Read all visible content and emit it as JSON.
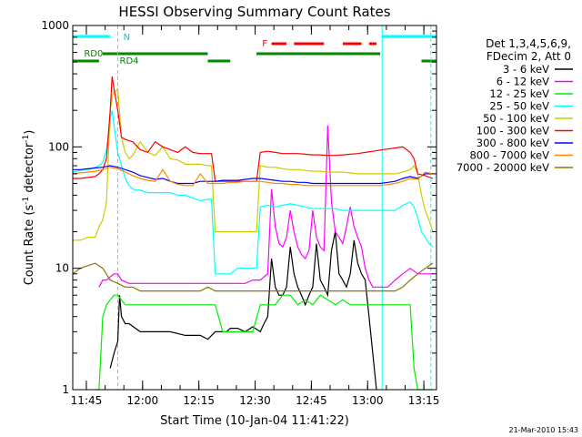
{
  "chart_data": {
    "type": "line",
    "title": "HESSI Observing Summary Count Rates",
    "xlabel": "Start Time (10-Jan-04 11:41:22)",
    "ylabel_main": "Count Rate (s",
    "ylabel_sup1": "-1",
    "ylabel_mid": " detector",
    "ylabel_sup2": "-1",
    "ylabel_end": ")",
    "y_scale": "log",
    "ylim": [
      1,
      1000
    ],
    "xlim_minutes": [
      0,
      97
    ],
    "x_ticks": [
      {
        "min": 3.63,
        "label": "11:45"
      },
      {
        "min": 18.63,
        "label": "12:00"
      },
      {
        "min": 33.63,
        "label": "12:15"
      },
      {
        "min": 48.63,
        "label": "12:30"
      },
      {
        "min": 63.63,
        "label": "12:45"
      },
      {
        "min": 78.63,
        "label": "13:00"
      },
      {
        "min": 93.63,
        "label": "13:15"
      }
    ],
    "y_ticks": [
      {
        "value": 1,
        "label": "1"
      },
      {
        "value": 10,
        "label": "10"
      },
      {
        "value": 100,
        "label": "100"
      },
      {
        "value": 1000,
        "label": "1000"
      }
    ],
    "legend_header": [
      "Det 1,3,4,5,6,9,",
      "FDecim 2, Att 0"
    ],
    "legend_position": "right",
    "timestamp": "21-Mar-2010 15:43",
    "flags": {
      "n_label": "N",
      "rd0_label": "RD0",
      "rd4_label": "RD4",
      "f_label": "F"
    },
    "series": [
      {
        "name": "3 - 6 keV",
        "color": "#000000",
        "x": [
          10,
          11,
          12,
          12.5,
          13,
          14,
          15,
          18,
          22,
          26,
          30,
          34,
          36,
          38,
          40,
          41,
          42,
          44,
          46,
          48,
          50,
          51,
          52,
          53,
          54,
          55,
          56,
          57,
          58,
          59,
          60,
          61,
          62,
          63,
          64,
          65,
          66,
          67,
          68,
          69,
          70,
          71,
          72,
          73,
          74,
          75,
          76,
          77,
          78,
          79,
          80,
          81
        ],
        "y": [
          1.5,
          2,
          2.5,
          6,
          4,
          3.5,
          3.5,
          3,
          3,
          3,
          2.8,
          2.8,
          2.6,
          3,
          3,
          3,
          3.2,
          3.2,
          3,
          3.3,
          3,
          3.5,
          4,
          12,
          7,
          6,
          6,
          7,
          15,
          9,
          7,
          6,
          5,
          6,
          7,
          16,
          8,
          7,
          6,
          14,
          20,
          9,
          8,
          7,
          9,
          17,
          11,
          9,
          8,
          4,
          2,
          1
        ]
      },
      {
        "name": "6 - 12 keV",
        "color": "#ff00ff",
        "x": [
          7,
          8,
          9,
          10,
          11,
          12,
          13,
          15,
          18,
          22,
          26,
          30,
          34,
          36,
          38,
          40,
          41,
          42,
          44,
          46,
          48,
          50,
          51,
          52,
          53,
          54,
          55,
          56,
          57,
          58,
          59,
          60,
          61,
          62,
          63,
          64,
          65,
          66,
          67,
          68,
          69,
          70,
          71,
          72,
          73,
          74,
          75,
          76,
          77,
          78,
          79,
          80,
          82,
          84,
          86,
          88,
          90,
          92,
          94,
          96
        ],
        "y": [
          7,
          8,
          8,
          8.5,
          9,
          9,
          8,
          7.5,
          7.5,
          7.5,
          7.5,
          7.5,
          7.5,
          7.5,
          7.5,
          7.5,
          7.5,
          7.5,
          7.5,
          7.5,
          8,
          8,
          8.5,
          9,
          45,
          22,
          16,
          15,
          18,
          30,
          20,
          15,
          13,
          12,
          14,
          30,
          18,
          15,
          14,
          150,
          35,
          20,
          18,
          16,
          22,
          32,
          22,
          18,
          15,
          10,
          8,
          7,
          7,
          7,
          8,
          9,
          10,
          9,
          9,
          9
        ]
      },
      {
        "name": "12 - 25 keV",
        "color": "#00ee00",
        "x": [
          6,
          7,
          8,
          9,
          10,
          11,
          12,
          14,
          16,
          18,
          22,
          26,
          30,
          34,
          35,
          36,
          38,
          40,
          41,
          42,
          44,
          46,
          48,
          50,
          52,
          54,
          56,
          58,
          60,
          62,
          64,
          66,
          68,
          70,
          72,
          74,
          76,
          78,
          80,
          82,
          84,
          86,
          88,
          90,
          91,
          92,
          93,
          94,
          95,
          96
        ],
        "y": [
          1,
          1,
          4,
          5,
          5.5,
          6,
          6,
          5,
          5,
          5,
          5,
          5,
          5,
          5,
          5,
          5,
          5,
          3,
          3,
          3,
          3,
          3,
          3,
          5,
          5,
          5,
          6,
          6,
          5,
          5.5,
          5,
          6,
          5.5,
          5,
          5.5,
          5,
          5,
          5,
          5,
          5,
          5,
          5,
          5,
          5,
          1.5,
          1,
          1,
          1,
          1,
          1
        ]
      },
      {
        "name": "25 - 50 keV",
        "color": "#00ffff",
        "x": [
          0,
          1,
          2,
          3,
          4,
          5,
          6,
          7,
          8,
          9,
          10,
          10.5,
          11,
          12,
          13,
          14,
          15,
          16,
          17,
          18,
          20,
          22,
          24,
          26,
          28,
          30,
          32,
          34,
          36,
          37,
          38,
          40,
          42,
          44,
          46,
          48,
          49,
          50,
          52,
          54,
          56,
          58,
          60,
          62,
          64,
          66,
          68,
          70,
          72,
          74,
          76,
          78,
          80,
          82,
          84,
          86,
          88,
          90,
          91,
          92,
          93,
          94,
          95,
          96
        ],
        "y": [
          62,
          63,
          64,
          65,
          65,
          66,
          68,
          70,
          75,
          95,
          170,
          200,
          150,
          90,
          70,
          55,
          48,
          45,
          44,
          44,
          42,
          42,
          42,
          42,
          40,
          40,
          38,
          36,
          37,
          37,
          9,
          9,
          9,
          10,
          10,
          10,
          10,
          32,
          33,
          32,
          33,
          34,
          33,
          32,
          31,
          31,
          31,
          31,
          30,
          30,
          30,
          30,
          30,
          30,
          30,
          30,
          33,
          35,
          32,
          26,
          20,
          18,
          16,
          15
        ]
      },
      {
        "name": "50 - 100 keV",
        "color": "#cccc00",
        "x": [
          0,
          2,
          4,
          6,
          7,
          8,
          9,
          10,
          10.5,
          11,
          12,
          13,
          14,
          15,
          16,
          18,
          20,
          22,
          24,
          26,
          28,
          30,
          32,
          34,
          36,
          37,
          38,
          40,
          42,
          44,
          46,
          48,
          49,
          50,
          52,
          54,
          56,
          58,
          60,
          62,
          64,
          66,
          68,
          70,
          72,
          74,
          76,
          78,
          80,
          82,
          84,
          86,
          88,
          90,
          91,
          92,
          93,
          94,
          95,
          96
        ],
        "y": [
          17,
          17,
          18,
          18,
          22,
          25,
          35,
          200,
          260,
          280,
          300,
          120,
          90,
          80,
          85,
          110,
          90,
          85,
          100,
          80,
          78,
          72,
          72,
          72,
          70,
          70,
          20,
          20,
          20,
          20,
          20,
          20,
          20,
          70,
          68,
          68,
          66,
          65,
          65,
          64,
          63,
          63,
          62,
          62,
          62,
          61,
          60,
          60,
          60,
          60,
          60,
          60,
          62,
          65,
          70,
          60,
          40,
          30,
          25,
          20
        ]
      },
      {
        "name": "100 - 300 keV",
        "color": "#ff0000",
        "x": [
          0,
          2,
          4,
          6,
          7,
          8,
          9,
          10,
          10.5,
          11,
          12,
          13,
          14,
          16,
          18,
          20,
          22,
          24,
          26,
          28,
          30,
          32,
          34,
          36,
          37,
          38,
          49,
          50,
          52,
          54,
          56,
          58,
          60,
          62,
          64,
          66,
          68,
          70,
          72,
          74,
          76,
          78,
          80,
          82,
          84,
          86,
          88,
          90,
          91,
          92,
          94,
          96
        ],
        "y": [
          55,
          55,
          56,
          57,
          60,
          65,
          80,
          200,
          380,
          300,
          200,
          120,
          115,
          110,
          95,
          90,
          110,
          100,
          95,
          90,
          100,
          90,
          88,
          88,
          88,
          52,
          52,
          90,
          92,
          90,
          88,
          88,
          88,
          87,
          86,
          86,
          85,
          85,
          86,
          87,
          88,
          90,
          92,
          94,
          96,
          98,
          100,
          90,
          80,
          60,
          58,
          55
        ]
      },
      {
        "name": "300 - 800 keV",
        "color": "#0000ff",
        "x": [
          0,
          2,
          4,
          6,
          8,
          10,
          12,
          14,
          16,
          18,
          20,
          22,
          24,
          26,
          28,
          30,
          32,
          34,
          36,
          38,
          40,
          42,
          44,
          46,
          48,
          50,
          52,
          54,
          56,
          58,
          60,
          62,
          64,
          66,
          68,
          70,
          72,
          74,
          76,
          78,
          80,
          82,
          84,
          86,
          88,
          90,
          92,
          94,
          96
        ],
        "y": [
          65,
          65,
          66,
          67,
          68,
          70,
          68,
          65,
          62,
          58,
          56,
          54,
          55,
          52,
          50,
          50,
          50,
          52,
          52,
          52,
          53,
          53,
          53,
          54,
          55,
          55,
          54,
          53,
          52,
          52,
          51,
          51,
          50,
          50,
          50,
          50,
          50,
          50,
          50,
          50,
          50,
          50,
          51,
          52,
          55,
          57,
          55,
          60,
          60
        ]
      },
      {
        "name": "800 - 7000 keV",
        "color": "#ff8800",
        "x": [
          0,
          2,
          4,
          6,
          8,
          10,
          12,
          14,
          16,
          18,
          20,
          22,
          24,
          26,
          28,
          30,
          32,
          34,
          36,
          38,
          40,
          42,
          44,
          46,
          48,
          50,
          52,
          54,
          56,
          58,
          60,
          62,
          64,
          66,
          68,
          70,
          72,
          74,
          76,
          78,
          80,
          82,
          84,
          86,
          88,
          90,
          92,
          94,
          96
        ],
        "y": [
          60,
          61,
          62,
          63,
          65,
          68,
          66,
          62,
          58,
          55,
          53,
          52,
          65,
          52,
          49,
          48,
          48,
          60,
          50,
          50,
          50,
          51,
          51,
          52,
          52,
          52,
          51,
          50,
          50,
          49,
          49,
          48,
          48,
          48,
          48,
          48,
          48,
          48,
          48,
          48,
          48,
          48,
          49,
          50,
          52,
          55,
          54,
          62,
          60
        ]
      },
      {
        "name": "7000 - 20000 keV",
        "color": "#887700",
        "x": [
          0,
          2,
          4,
          6,
          8,
          10,
          12,
          14,
          16,
          18,
          20,
          22,
          24,
          26,
          28,
          30,
          32,
          34,
          36,
          38,
          40,
          42,
          44,
          46,
          48,
          50,
          52,
          54,
          56,
          58,
          60,
          62,
          64,
          66,
          68,
          70,
          72,
          74,
          76,
          78,
          80,
          82,
          84,
          86,
          88,
          90,
          92,
          94,
          96
        ],
        "y": [
          9,
          10,
          10.5,
          11,
          10,
          8,
          7.5,
          7,
          7,
          6.5,
          6.5,
          6.5,
          6.5,
          6.5,
          6.5,
          6.5,
          6.5,
          6.5,
          7,
          6.5,
          6.5,
          6.5,
          6.5,
          6.5,
          6.5,
          6.5,
          6.5,
          6.5,
          6.5,
          6.5,
          6.5,
          6.5,
          6.5,
          6.5,
          6.5,
          6.5,
          6.5,
          6.5,
          6.5,
          6.5,
          6.5,
          6.5,
          6.5,
          6.5,
          7,
          8,
          9,
          10,
          11
        ]
      }
    ]
  }
}
